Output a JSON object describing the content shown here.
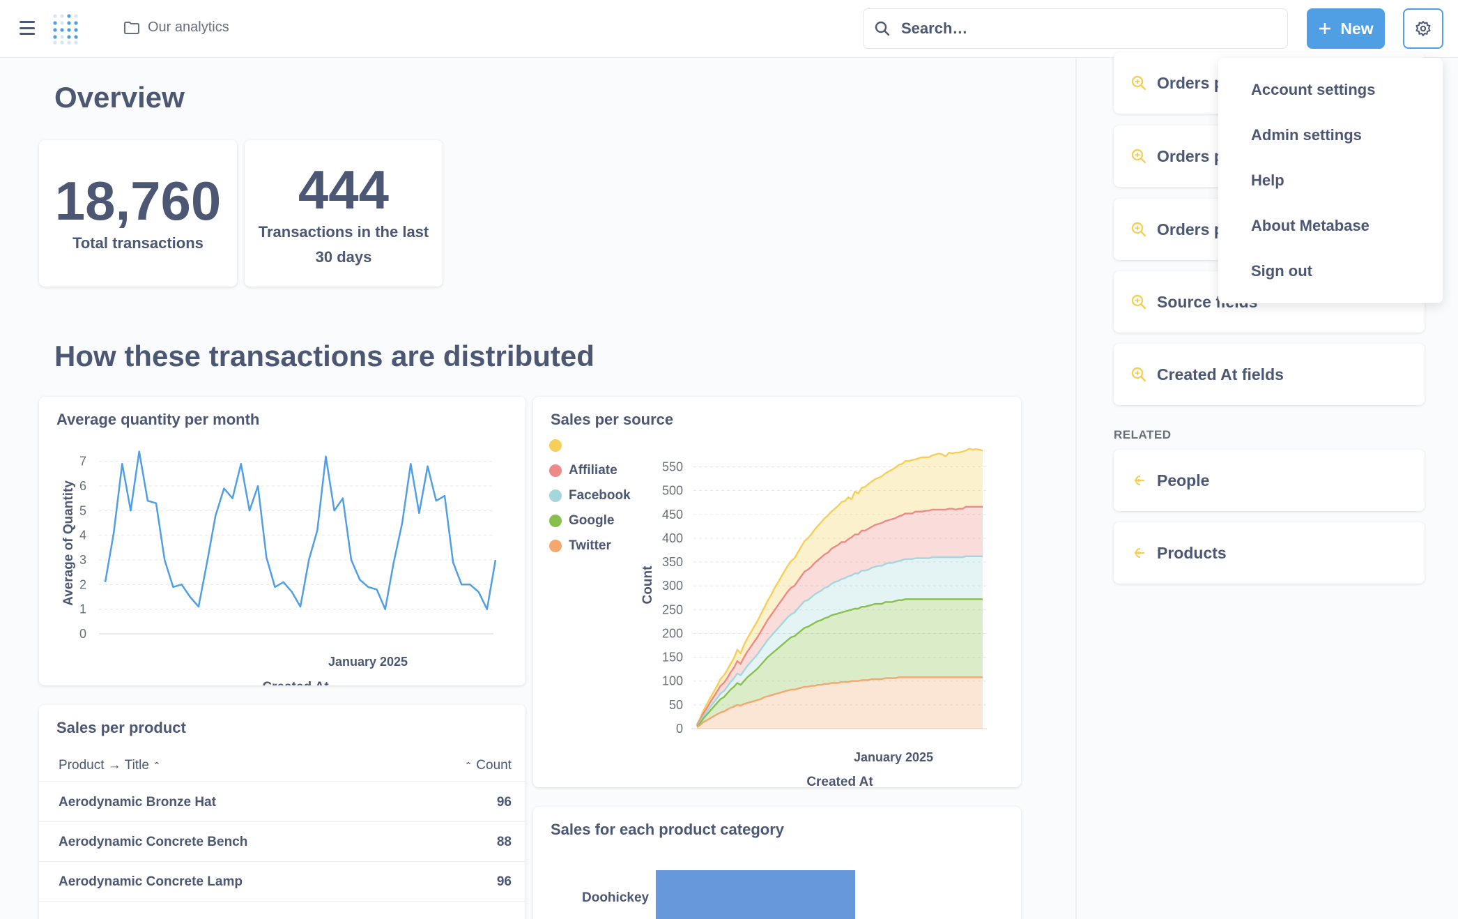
{
  "header": {
    "breadcrumb": "Our analytics",
    "search_placeholder": "Search…",
    "new_label": "New"
  },
  "overview": {
    "title": "Overview",
    "total_value": "18,760",
    "total_label": "Total transactions",
    "recent_value": "444",
    "recent_label": "Transactions in the last 30 days"
  },
  "distribution": {
    "title": "How these transactions are distributed"
  },
  "cards": {
    "avg_quantity": "Average quantity per month",
    "sales_source": "Sales per source",
    "sales_product": "Sales per product",
    "sales_category": "Sales for each product category"
  },
  "table": {
    "col1": "Product → Title",
    "col2": "Count",
    "rows": [
      {
        "title": "Aerodynamic Bronze Hat",
        "count": "96"
      },
      {
        "title": "Aerodynamic Concrete Bench",
        "count": "88"
      },
      {
        "title": "Aerodynamic Concrete Lamp",
        "count": "96"
      }
    ]
  },
  "sidebar": {
    "items": [
      "Orders p",
      "Orders p",
      "Orders p",
      "Source fields",
      "Created At fields"
    ],
    "related_label": "RELATED",
    "related": [
      "People",
      "Products"
    ]
  },
  "dropdown": {
    "items": [
      "Account settings",
      "Admin settings",
      "Help",
      "About Metabase",
      "Sign out"
    ]
  },
  "colors": {
    "accent": "#509ee3",
    "text": "#4c5773",
    "affiliate": "#ed8a87",
    "facebook": "#a5d6dc",
    "google": "#88bf4d",
    "twitter": "#f2a86f",
    "unnamed": "#f5cf59"
  },
  "chart_data": [
    {
      "type": "line",
      "title": "Average quantity per month",
      "xlabel": "Created At",
      "ylabel": "Average of Quantity",
      "x_tick_labels": [
        "January 2025"
      ],
      "y_ticks": [
        0,
        1,
        2,
        3,
        4,
        5,
        6,
        7
      ],
      "ylim": [
        0,
        7.5
      ],
      "values": [
        2.1,
        4.1,
        6.9,
        5.0,
        7.4,
        5.4,
        5.3,
        3.0,
        1.9,
        2.0,
        1.5,
        1.1,
        2.9,
        4.8,
        5.9,
        5.5,
        6.9,
        5.0,
        6.0,
        3.1,
        1.9,
        2.1,
        1.7,
        1.1,
        3.0,
        4.2,
        7.2,
        5.0,
        5.5,
        3.0,
        2.2,
        1.9,
        1.8,
        1.0,
        2.9,
        4.5,
        6.9,
        4.9,
        6.8,
        5.4,
        5.6,
        2.9,
        2.0,
        2.0,
        1.7,
        1.0,
        3.0
      ]
    },
    {
      "type": "area",
      "stacked": true,
      "title": "Sales per source",
      "xlabel": "Created At",
      "ylabel": "Count",
      "x_tick_labels": [
        "January 2025"
      ],
      "y_ticks": [
        0,
        50,
        100,
        150,
        200,
        250,
        300,
        350,
        400,
        450,
        500,
        550
      ],
      "ylim": [
        0,
        580
      ],
      "legend_position": "top-left",
      "series": [
        {
          "name": "",
          "color": "#f5cf59",
          "values": [
            0,
            4,
            6,
            8,
            9,
            10,
            12,
            14,
            16,
            17,
            18,
            20,
            24,
            22,
            26,
            28,
            30,
            32,
            34,
            36,
            38,
            40,
            42,
            46,
            48,
            50,
            52,
            54,
            56,
            58,
            60,
            62,
            64,
            66,
            68,
            70,
            72,
            74,
            76,
            78,
            78,
            80,
            82,
            84,
            86,
            88,
            80,
            90,
            86,
            90,
            92,
            94,
            95,
            96,
            97,
            98,
            100,
            102,
            104,
            106,
            108,
            108,
            110,
            110,
            112,
            110,
            112,
            114,
            112,
            112,
            114,
            116,
            118,
            116,
            112,
            118,
            116,
            120,
            118,
            120,
            118,
            122,
            120,
            121,
            120,
            118
          ]
        },
        {
          "name": "Affiliate",
          "color": "#ed8a87",
          "values": [
            2,
            4,
            6,
            8,
            10,
            12,
            14,
            16,
            17,
            18,
            20,
            22,
            26,
            24,
            28,
            30,
            32,
            34,
            36,
            38,
            40,
            42,
            44,
            46,
            48,
            50,
            52,
            54,
            56,
            56,
            58,
            60,
            62,
            64,
            64,
            66,
            68,
            70,
            70,
            72,
            74,
            74,
            76,
            78,
            76,
            78,
            80,
            82,
            82,
            84,
            84,
            86,
            86,
            88,
            88,
            90,
            90,
            90,
            92,
            92,
            94,
            94,
            96,
            96,
            96,
            98,
            98,
            98,
            100,
            100,
            100,
            100,
            100,
            100,
            100,
            102,
            102,
            100,
            102,
            102,
            104,
            104,
            104,
            104,
            104,
            104
          ]
        },
        {
          "name": "Facebook",
          "color": "#a5d6dc",
          "values": [
            1,
            3,
            5,
            6,
            8,
            9,
            10,
            12,
            13,
            14,
            16,
            18,
            20,
            20,
            22,
            24,
            26,
            28,
            30,
            32,
            34,
            36,
            38,
            40,
            42,
            44,
            46,
            48,
            48,
            50,
            52,
            54,
            56,
            56,
            58,
            60,
            60,
            62,
            64,
            64,
            66,
            68,
            68,
            70,
            70,
            72,
            72,
            74,
            74,
            76,
            76,
            76,
            78,
            78,
            80,
            80,
            80,
            82,
            82,
            82,
            82,
            84,
            84,
            84,
            84,
            86,
            86,
            86,
            86,
            86,
            88,
            88,
            88,
            88,
            88,
            88,
            88,
            88,
            88,
            88,
            90,
            90,
            90,
            90,
            90,
            90
          ]
        },
        {
          "name": "Google",
          "color": "#88bf4d",
          "values": [
            2,
            4,
            8,
            12,
            16,
            20,
            24,
            28,
            30,
            34,
            38,
            42,
            46,
            44,
            48,
            54,
            58,
            62,
            66,
            72,
            76,
            82,
            86,
            90,
            94,
            98,
            102,
            106,
            110,
            112,
            116,
            120,
            124,
            126,
            128,
            132,
            134,
            136,
            138,
            140,
            142,
            144,
            146,
            146,
            148,
            150,
            150,
            152,
            152,
            154,
            154,
            156,
            156,
            158,
            158,
            158,
            160,
            160,
            160,
            162,
            162,
            162,
            164,
            164,
            164,
            164,
            164,
            164,
            164,
            164,
            164,
            164,
            164,
            164,
            164,
            164,
            164,
            164,
            164,
            164,
            164,
            164,
            164,
            164,
            164,
            164
          ]
        },
        {
          "name": "Twitter",
          "color": "#f2a86f",
          "values": [
            3,
            8,
            14,
            18,
            22,
            26,
            30,
            34,
            36,
            40,
            44,
            46,
            50,
            48,
            52,
            54,
            56,
            58,
            60,
            62,
            66,
            68,
            70,
            72,
            74,
            76,
            78,
            80,
            82,
            82,
            84,
            86,
            88,
            88,
            90,
            90,
            92,
            92,
            94,
            94,
            96,
            96,
            96,
            98,
            98,
            98,
            100,
            100,
            100,
            102,
            102,
            102,
            104,
            104,
            104,
            104,
            106,
            106,
            106,
            106,
            108,
            108,
            108,
            108,
            108,
            108,
            108,
            108,
            108,
            108,
            108,
            108,
            108,
            108,
            108,
            108,
            108,
            108,
            108,
            108,
            108,
            108,
            108,
            108,
            108,
            108
          ]
        }
      ]
    },
    {
      "type": "bar",
      "orientation": "horizontal",
      "title": "Sales for each product category",
      "categories": [
        "Doohickey"
      ],
      "values": [
        null
      ]
    }
  ]
}
